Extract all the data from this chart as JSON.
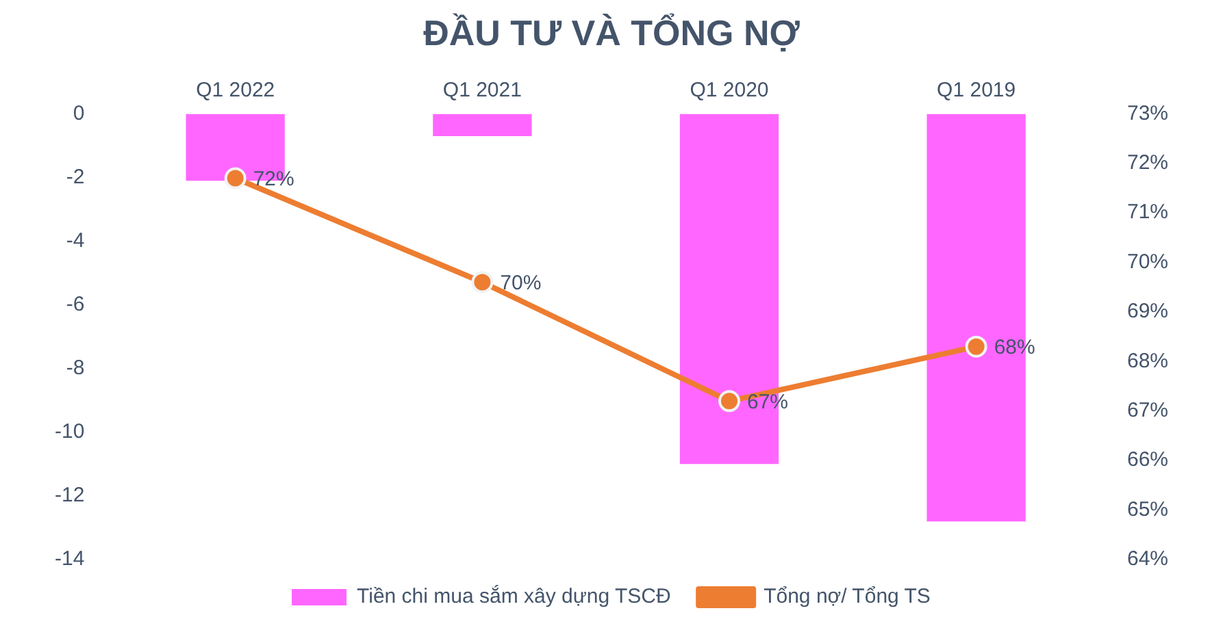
{
  "chart_data": {
    "type": "bar",
    "title": "ĐẦU TƯ VÀ TỔNG NỢ",
    "categories": [
      "Q1 2022",
      "Q1 2021",
      "Q1 2020",
      "Q1 2019"
    ],
    "series": [
      {
        "name": "Tiền chi mua sắm xây dựng TSCĐ",
        "color": "#ff66ff",
        "values": [
          -2.1,
          -0.7,
          -11.0,
          -12.8
        ]
      },
      {
        "name": "Tổng nợ/ Tổng TS",
        "type": "line",
        "axis": "y2",
        "color": "#ed7d31",
        "values": [
          71.7,
          69.6,
          67.2,
          68.3
        ],
        "value_labels": [
          "72%",
          "70%",
          "67%",
          "68%"
        ]
      }
    ],
    "ylim": [
      -14,
      0
    ],
    "yticks": [
      -14,
      -12,
      -10,
      -8,
      -6,
      -4,
      -2,
      0
    ],
    "y2lim": [
      64,
      73
    ],
    "y2ticks": [
      {
        "value": 64,
        "label": "64%"
      },
      {
        "value": 65,
        "label": "65%"
      },
      {
        "value": 66,
        "label": "66%"
      },
      {
        "value": 67,
        "label": "67%"
      },
      {
        "value": 68,
        "label": "68%"
      },
      {
        "value": 69,
        "label": "69%"
      },
      {
        "value": 70,
        "label": "70%"
      },
      {
        "value": 71,
        "label": "71%"
      },
      {
        "value": 72,
        "label": "72%"
      },
      {
        "value": 73,
        "label": "73%"
      }
    ],
    "grid": false,
    "legend": "bottom",
    "marker": "circle",
    "line_style": "solid"
  }
}
